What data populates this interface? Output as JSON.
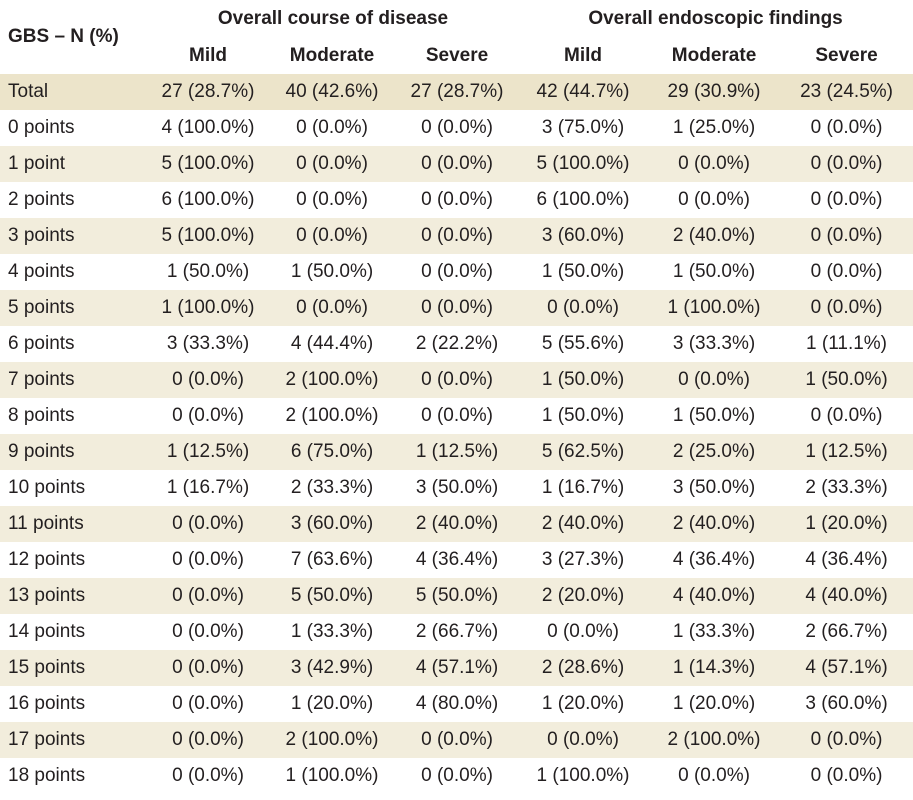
{
  "header": {
    "row_label": "GBS – N (%)",
    "groups": [
      "Overall course of disease",
      "Overall endoscopic findings"
    ],
    "subcolumns": [
      "Mild",
      "Moderate",
      "Severe",
      "Mild",
      "Moderate",
      "Severe"
    ]
  },
  "rows": [
    {
      "label": "Total",
      "cells": [
        "27 (28.7%)",
        "40 (42.6%)",
        "27 (28.7%)",
        "42 (44.7%)",
        "29 (30.9%)",
        "23 (24.5%)"
      ]
    },
    {
      "label": "0 points",
      "cells": [
        "4 (100.0%)",
        "0 (0.0%)",
        "0 (0.0%)",
        "3 (75.0%)",
        "1 (25.0%)",
        "0 (0.0%)"
      ]
    },
    {
      "label": "1 point",
      "cells": [
        "5 (100.0%)",
        "0 (0.0%)",
        "0 (0.0%)",
        "5 (100.0%)",
        "0 (0.0%)",
        "0 (0.0%)"
      ]
    },
    {
      "label": "2 points",
      "cells": [
        "6 (100.0%)",
        "0 (0.0%)",
        "0 (0.0%)",
        "6 (100.0%)",
        "0 (0.0%)",
        "0 (0.0%)"
      ]
    },
    {
      "label": "3 points",
      "cells": [
        "5 (100.0%)",
        "0 (0.0%)",
        "0 (0.0%)",
        "3 (60.0%)",
        "2 (40.0%)",
        "0 (0.0%)"
      ]
    },
    {
      "label": "4 points",
      "cells": [
        "1 (50.0%)",
        "1 (50.0%)",
        "0 (0.0%)",
        "1 (50.0%)",
        "1 (50.0%)",
        "0 (0.0%)"
      ]
    },
    {
      "label": "5 points",
      "cells": [
        "1 (100.0%)",
        "0 (0.0%)",
        "0 (0.0%)",
        "0 (0.0%)",
        "1 (100.0%)",
        "0 (0.0%)"
      ]
    },
    {
      "label": "6 points",
      "cells": [
        "3 (33.3%)",
        "4 (44.4%)",
        "2 (22.2%)",
        "5 (55.6%)",
        "3 (33.3%)",
        "1 (11.1%)"
      ]
    },
    {
      "label": "7 points",
      "cells": [
        "0 (0.0%)",
        "2 (100.0%)",
        "0 (0.0%)",
        "1 (50.0%)",
        "0 (0.0%)",
        "1 (50.0%)"
      ]
    },
    {
      "label": "8 points",
      "cells": [
        "0 (0.0%)",
        "2 (100.0%)",
        "0 (0.0%)",
        "1 (50.0%)",
        "1 (50.0%)",
        "0 (0.0%)"
      ]
    },
    {
      "label": "9 points",
      "cells": [
        "1 (12.5%)",
        "6 (75.0%)",
        "1 (12.5%)",
        "5 (62.5%)",
        "2 (25.0%)",
        "1 (12.5%)"
      ]
    },
    {
      "label": "10 points",
      "cells": [
        "1 (16.7%)",
        "2 (33.3%)",
        "3 (50.0%)",
        "1 (16.7%)",
        "3 (50.0%)",
        "2 (33.3%)"
      ]
    },
    {
      "label": "11 points",
      "cells": [
        "0 (0.0%)",
        "3 (60.0%)",
        "2 (40.0%)",
        "2 (40.0%)",
        "2 (40.0%)",
        "1 (20.0%)"
      ]
    },
    {
      "label": "12 points",
      "cells": [
        "0 (0.0%)",
        "7 (63.6%)",
        "4 (36.4%)",
        "3 (27.3%)",
        "4 (36.4%)",
        "4 (36.4%)"
      ]
    },
    {
      "label": "13 points",
      "cells": [
        "0 (0.0%)",
        "5 (50.0%)",
        "5 (50.0%)",
        "2 (20.0%)",
        "4 (40.0%)",
        "4 (40.0%)"
      ]
    },
    {
      "label": "14 points",
      "cells": [
        "0 (0.0%)",
        "1 (33.3%)",
        "2 (66.7%)",
        "0 (0.0%)",
        "1 (33.3%)",
        "2 (66.7%)"
      ]
    },
    {
      "label": "15 points",
      "cells": [
        "0 (0.0%)",
        "3 (42.9%)",
        "4 (57.1%)",
        "2 (28.6%)",
        "1 (14.3%)",
        "4 (57.1%)"
      ]
    },
    {
      "label": "16 points",
      "cells": [
        "0 (0.0%)",
        "1 (20.0%)",
        "4 (80.0%)",
        "1 (20.0%)",
        "1 (20.0%)",
        "3 (60.0%)"
      ]
    },
    {
      "label": "17 points",
      "cells": [
        "0 (0.0%)",
        "2 (100.0%)",
        "0 (0.0%)",
        "0 (0.0%)",
        "2 (100.0%)",
        "0 (0.0%)"
      ]
    },
    {
      "label": "18 points",
      "cells": [
        "0 (0.0%)",
        "1 (100.0%)",
        "0 (0.0%)",
        "1 (100.0%)",
        "0 (0.0%)",
        "0 (0.0%)"
      ]
    }
  ],
  "colors": {
    "total_row": "#ece4ca",
    "shaded_row": "#f2eddc",
    "text": "#231f20"
  }
}
